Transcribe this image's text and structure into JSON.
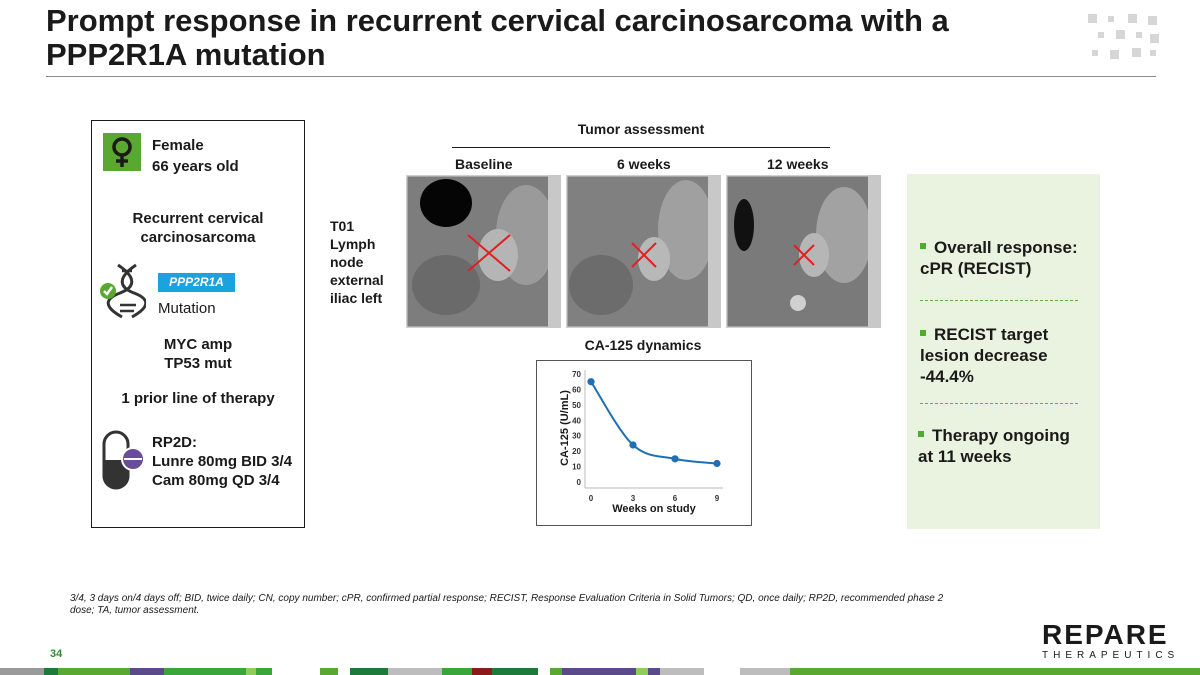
{
  "slide": {
    "title": "Prompt response in recurrent cervical carcinosarcoma with a PPP2R1A mutation",
    "page_number": "34",
    "footnote": "3/4, 3 days on/4 days off; BID, twice daily; CN, copy number; cPR, confirmed partial response; RECIST, Response Evaluation Criteria in Solid Tumors; QD, once daily; RP2D, recommended phase 2 dose; TA, tumor assessment.",
    "logo_main": "REPARE",
    "logo_sub": "THERAPEUTICS"
  },
  "patient": {
    "sex": "Female",
    "age": "66 years old",
    "diagnosis": "Recurrent cervical carcinosarcoma",
    "gene": "PPP2R1A",
    "gene_status": "Mutation",
    "other_alterations_1": "MYC amp",
    "other_alterations_2": "TP53 mut",
    "prior_lines": "1 prior line of therapy",
    "dose_label": "RP2D:",
    "dose_1": "Lunre 80mg BID 3/4",
    "dose_2": "Cam 80mg QD 3/4",
    "icons": [
      "female-icon",
      "dna-icon",
      "pill-icon"
    ]
  },
  "tumor": {
    "heading": "Tumor assessment",
    "columns": [
      "Baseline",
      "6 weeks",
      "12 weeks"
    ],
    "lesion_label": "T01 Lymph node external iliac left"
  },
  "results": {
    "bullet_1": "Overall response: cPR (RECIST)",
    "bullet_2": "RECIST target lesion decrease -44.4%",
    "bullet_3": "Therapy ongoing at 11 weeks",
    "accent_color": "#4caf2c"
  },
  "chart_data": {
    "type": "line",
    "title": "CA-125 dynamics",
    "xlabel": "Weeks on study",
    "ylabel": "CA-125 (U/mL)",
    "x": [
      0,
      3,
      6,
      9
    ],
    "y": [
      65,
      24,
      15,
      12
    ],
    "xticks": [
      "0",
      "3",
      "6",
      "9"
    ],
    "yticks": [
      "0",
      "10",
      "20",
      "30",
      "40",
      "50",
      "60",
      "70"
    ],
    "xlim": [
      0,
      9
    ],
    "ylim": [
      0,
      70
    ],
    "line_color": "#1f6fb4",
    "grid": false
  }
}
